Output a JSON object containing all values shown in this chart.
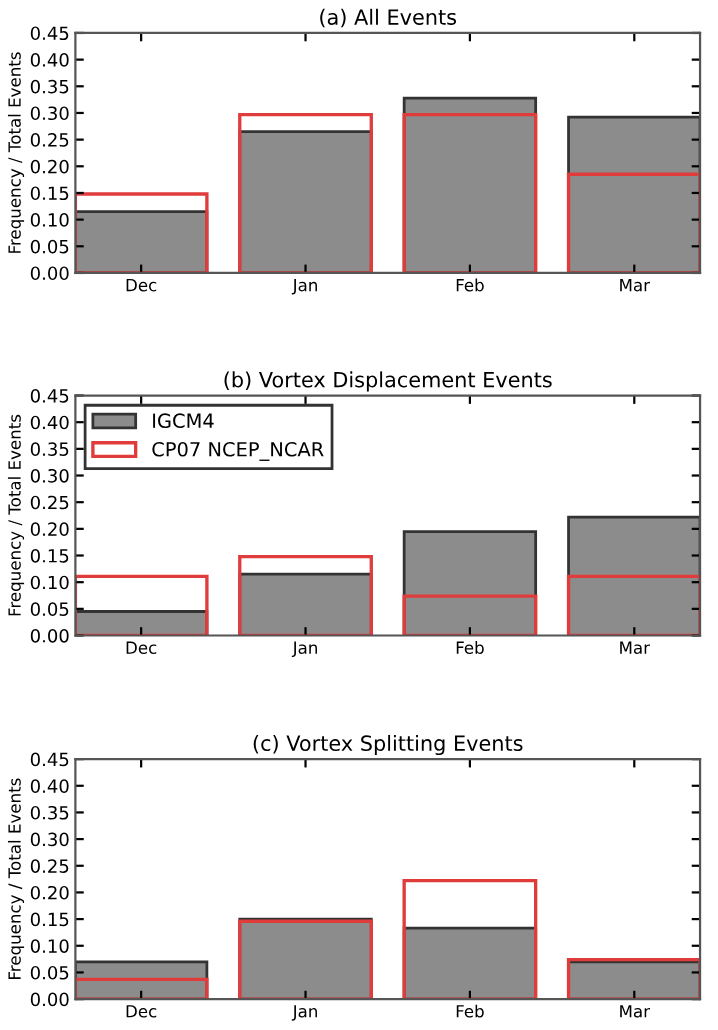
{
  "chart_data": [
    {
      "type": "bar",
      "title": "(a) All Events",
      "ylabel": "Frequency / Total Events",
      "categories": [
        "Dec",
        "Jan",
        "Feb",
        "Mar"
      ],
      "ylim": [
        0,
        0.45
      ],
      "yticks": [
        {
          "value": 0,
          "label": "0.00"
        },
        {
          "value": 0.05,
          "label": "0.05"
        },
        {
          "value": 0.1,
          "label": "0.10"
        },
        {
          "value": 0.15,
          "label": "0.15"
        },
        {
          "value": 0.2,
          "label": "0.20"
        },
        {
          "value": 0.25,
          "label": "0.25"
        },
        {
          "value": 0.3,
          "label": "0.30"
        },
        {
          "value": 0.35,
          "label": "0.35"
        },
        {
          "value": 0.4,
          "label": "0.40"
        },
        {
          "value": 0.45,
          "label": "0.45"
        }
      ],
      "grid": false,
      "legend": false,
      "series": [
        {
          "color": "#8c8c8c",
          "values": [
            0.115,
            0.265,
            0.328,
            0.292
          ]
        },
        {
          "color": "#e03c3c",
          "values": [
            0.148,
            0.297,
            0.297,
            0.185
          ]
        }
      ]
    },
    {
      "type": "bar",
      "title": "(b) Vortex Displacement Events",
      "ylabel": "Frequency / Total Events",
      "categories": [
        "Dec",
        "Jan",
        "Feb",
        "Mar"
      ],
      "ylim": [
        0,
        0.45
      ],
      "yticks": [
        {
          "value": 0,
          "label": "0.00"
        },
        {
          "value": 0.05,
          "label": "0.05"
        },
        {
          "value": 0.1,
          "label": "0.10"
        },
        {
          "value": 0.15,
          "label": "0.15"
        },
        {
          "value": 0.2,
          "label": "0.20"
        },
        {
          "value": 0.25,
          "label": "0.25"
        },
        {
          "value": 0.3,
          "label": "0.30"
        },
        {
          "value": 0.35,
          "label": "0.35"
        },
        {
          "value": 0.4,
          "label": "0.40"
        },
        {
          "value": 0.45,
          "label": "0.45"
        }
      ],
      "grid": false,
      "legend": "top left",
      "series": [
        {
          "name": "IGCM4",
          "color": "#8c8c8c",
          "values": [
            0.045,
            0.115,
            0.195,
            0.222
          ]
        },
        {
          "name": "CP07 NCEP_NCAR",
          "color": "#e03c3c",
          "values": [
            0.111,
            0.148,
            0.074,
            0.111
          ]
        }
      ]
    },
    {
      "type": "bar",
      "title": "(c) Vortex Splitting Events",
      "ylabel": "Frequency / Total Events",
      "categories": [
        "Dec",
        "Jan",
        "Feb",
        "Mar"
      ],
      "ylim": [
        0,
        0.45
      ],
      "yticks": [
        {
          "value": 0,
          "label": "0.00"
        },
        {
          "value": 0.05,
          "label": "0.05"
        },
        {
          "value": 0.1,
          "label": "0.10"
        },
        {
          "value": 0.15,
          "label": "0.15"
        },
        {
          "value": 0.2,
          "label": "0.20"
        },
        {
          "value": 0.25,
          "label": "0.25"
        },
        {
          "value": 0.3,
          "label": "0.30"
        },
        {
          "value": 0.35,
          "label": "0.35"
        },
        {
          "value": 0.4,
          "label": "0.40"
        },
        {
          "value": 0.45,
          "label": "0.45"
        }
      ],
      "grid": false,
      "legend": false,
      "series": [
        {
          "color": "#8c8c8c",
          "values": [
            0.07,
            0.15,
            0.133,
            0.07
          ]
        },
        {
          "color": "#e03c3c",
          "values": [
            0.037,
            0.146,
            0.222,
            0.074
          ]
        }
      ]
    }
  ]
}
